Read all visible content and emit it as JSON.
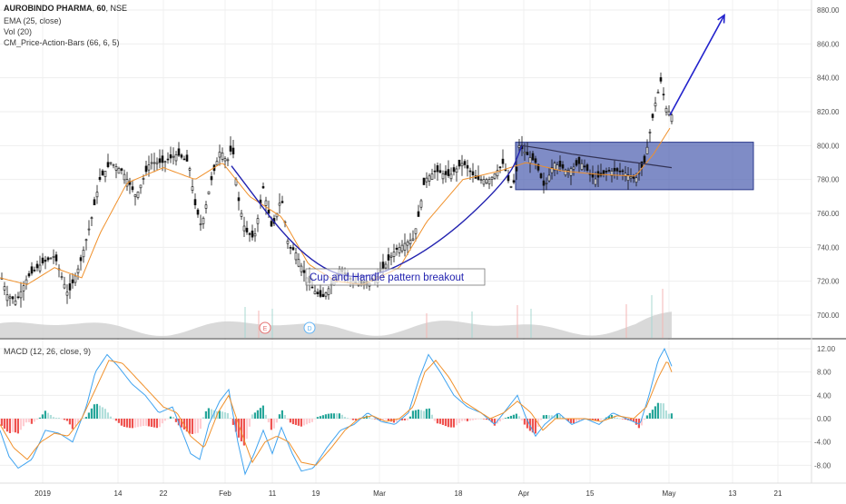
{
  "legend": {
    "symbol": "AUROBINDO PHARMA",
    "interval": "60",
    "exchange": "NSE",
    "indicators": [
      "EMA (25, close)",
      "Vol (20)",
      "CM_Price-Action-Bars (66, 6, 5)"
    ]
  },
  "macd_label": "MACD (12, 26, close, 9)",
  "annotation": "Cup and Handle pattern breakout",
  "events": [
    {
      "label": "E"
    },
    {
      "label": "D"
    }
  ],
  "colors": {
    "candle": "#111111",
    "ema": "#f0902a",
    "cup_curve": "#2323b0",
    "rect_fill": "#5466b3",
    "arrow": "#2323cc",
    "macd_line": "#3fa3f0",
    "signal_line": "#f0902a",
    "hist_up": "#26a69a",
    "hist_down": "#ef5350",
    "volume": "#d0d0d0",
    "event_E": "#e57373",
    "event_D": "#64b5f6"
  },
  "chart_data": [
    {
      "type": "candlestick",
      "title": "AUROBINDO PHARMA, 60, NSE",
      "ylim": [
        690,
        885
      ],
      "y_ticks": [
        "880.00",
        "860.00",
        "840.00",
        "820.00",
        "800.00",
        "780.00",
        "760.00",
        "740.00",
        "720.00",
        "700.00"
      ],
      "x_ticks": [
        "2019",
        "14",
        "22",
        "Feb",
        "11",
        "19",
        "Mar",
        "18",
        "Apr",
        "15",
        "May",
        "13",
        "21"
      ],
      "series": [
        {
          "name": "Price",
          "points": [
            [
              0,
              725
            ],
            [
              8,
              712
            ],
            [
              18,
              708
            ],
            [
              30,
              722
            ],
            [
              45,
              730
            ],
            [
              60,
              735
            ],
            [
              75,
              712
            ],
            [
              88,
              730
            ],
            [
              100,
              755
            ],
            [
              110,
              780
            ],
            [
              122,
              790
            ],
            [
              135,
              785
            ],
            [
              150,
              770
            ],
            [
              165,
              790
            ],
            [
              180,
              790
            ],
            [
              195,
              795
            ],
            [
              208,
              790
            ],
            [
              215,
              765
            ],
            [
              222,
              752
            ],
            [
              232,
              778
            ],
            [
              243,
              798
            ],
            [
              250,
              790
            ],
            [
              256,
              800
            ],
            [
              262,
              770
            ],
            [
              270,
              750
            ],
            [
              280,
              745
            ],
            [
              290,
              775
            ],
            [
              300,
              750
            ],
            [
              310,
              770
            ],
            [
              318,
              740
            ],
            [
              325,
              738
            ],
            [
              335,
              725
            ],
            [
              345,
              715
            ],
            [
              355,
              710
            ],
            [
              365,
              718
            ],
            [
              375,
              728
            ],
            [
              385,
              722
            ],
            [
              395,
              718
            ],
            [
              405,
              718
            ],
            [
              415,
              722
            ],
            [
              425,
              730
            ],
            [
              435,
              738
            ],
            [
              445,
              742
            ],
            [
              455,
              745
            ],
            [
              460,
              755
            ],
            [
              468,
              780
            ],
            [
              480,
              785
            ],
            [
              495,
              782
            ],
            [
              510,
              790
            ],
            [
              525,
              780
            ],
            [
              540,
              780
            ],
            [
              555,
              790
            ],
            [
              562,
              775
            ],
            [
              568,
              780
            ],
            [
              572,
              800
            ],
            [
              580,
              795
            ],
            [
              590,
              790
            ],
            [
              600,
              775
            ],
            [
              610,
              790
            ],
            [
              625,
              785
            ],
            [
              640,
              790
            ],
            [
              655,
              780
            ],
            [
              670,
              785
            ],
            [
              685,
              785
            ],
            [
              700,
              780
            ],
            [
              710,
              790
            ],
            [
              716,
              808
            ],
            [
              722,
              825
            ],
            [
              728,
              838
            ],
            [
              734,
              822
            ],
            [
              740,
              818
            ]
          ]
        },
        {
          "name": "EMA",
          "points": [
            [
              0,
              722
            ],
            [
              30,
              718
            ],
            [
              60,
              728
            ],
            [
              90,
              722
            ],
            [
              110,
              748
            ],
            [
              140,
              778
            ],
            [
              180,
              787
            ],
            [
              215,
              780
            ],
            [
              245,
              790
            ],
            [
              275,
              770
            ],
            [
              310,
              758
            ],
            [
              340,
              730
            ],
            [
              370,
              720
            ],
            [
              400,
              718
            ],
            [
              440,
              728
            ],
            [
              470,
              755
            ],
            [
              510,
              780
            ],
            [
              550,
              785
            ],
            [
              580,
              790
            ],
            [
              620,
              785
            ],
            [
              660,
              783
            ],
            [
              700,
              782
            ],
            [
              720,
              795
            ],
            [
              740,
              812
            ]
          ]
        }
      ],
      "cup_curve": [
        [
          255,
          788
        ],
        [
          330,
          735
        ],
        [
          395,
          718
        ],
        [
          480,
          740
        ],
        [
          560,
          780
        ],
        [
          575,
          800
        ]
      ],
      "handle_line": [
        [
          575,
          800
        ],
        [
          600,
          798
        ],
        [
          630,
          795
        ],
        [
          670,
          792
        ],
        [
          700,
          790
        ],
        [
          740,
          787
        ]
      ],
      "breakout_zone": {
        "x": [
          568,
          830
        ],
        "y": [
          774,
          802
        ]
      },
      "target_arrow": {
        "from": [
          738,
          818
        ],
        "to": [
          798,
          877
        ]
      }
    },
    {
      "type": "line",
      "title": "MACD (12, 26, close, 9)",
      "ylim": [
        -12,
        14
      ],
      "y_ticks": [
        "12.00",
        "8.00",
        "4.00",
        "0.00",
        "-4.00",
        "-8.00"
      ],
      "series": [
        {
          "name": "MACD",
          "points": [
            [
              0,
              -2
            ],
            [
              10,
              -6.5
            ],
            [
              20,
              -8.5
            ],
            [
              35,
              -7
            ],
            [
              50,
              -2
            ],
            [
              65,
              -2.5
            ],
            [
              80,
              -4
            ],
            [
              95,
              2
            ],
            [
              105,
              8
            ],
            [
              118,
              11
            ],
            [
              130,
              9
            ],
            [
              145,
              6
            ],
            [
              160,
              4
            ],
            [
              175,
              1
            ],
            [
              190,
              2
            ],
            [
              200,
              -2
            ],
            [
              210,
              -6
            ],
            [
              220,
              -7
            ],
            [
              230,
              -1
            ],
            [
              242,
              3
            ],
            [
              252,
              5
            ],
            [
              262,
              -4
            ],
            [
              270,
              -9.5
            ],
            [
              280,
              -6
            ],
            [
              290,
              -2
            ],
            [
              300,
              -6
            ],
            [
              310,
              -1.5
            ],
            [
              322,
              -6
            ],
            [
              332,
              -9
            ],
            [
              345,
              -8.5
            ],
            [
              360,
              -5
            ],
            [
              375,
              -2
            ],
            [
              390,
              -1
            ],
            [
              405,
              1
            ],
            [
              420,
              -0.5
            ],
            [
              435,
              -1
            ],
            [
              450,
              1
            ],
            [
              462,
              7
            ],
            [
              472,
              11
            ],
            [
              485,
              8
            ],
            [
              500,
              4
            ],
            [
              515,
              2
            ],
            [
              530,
              1
            ],
            [
              545,
              -1
            ],
            [
              560,
              2
            ],
            [
              570,
              4
            ],
            [
              580,
              0
            ],
            [
              590,
              -3
            ],
            [
              600,
              -1
            ],
            [
              615,
              1
            ],
            [
              630,
              -1
            ],
            [
              645,
              0
            ],
            [
              660,
              -1
            ],
            [
              675,
              1
            ],
            [
              690,
              0
            ],
            [
              705,
              -1
            ],
            [
              715,
              4
            ],
            [
              725,
              10
            ],
            [
              732,
              12
            ],
            [
              740,
              9
            ]
          ]
        },
        {
          "name": "Signal",
          "points": [
            [
              0,
              -1
            ],
            [
              15,
              -5
            ],
            [
              30,
              -7
            ],
            [
              45,
              -4
            ],
            [
              60,
              -2.5
            ],
            [
              75,
              -3
            ],
            [
              90,
              0
            ],
            [
              105,
              5
            ],
            [
              120,
              10
            ],
            [
              135,
              9.5
            ],
            [
              150,
              7
            ],
            [
              165,
              4.5
            ],
            [
              180,
              2
            ],
            [
              195,
              1
            ],
            [
              210,
              -3
            ],
            [
              225,
              -5
            ],
            [
              240,
              1
            ],
            [
              252,
              4
            ],
            [
              265,
              -2
            ],
            [
              278,
              -7.5
            ],
            [
              292,
              -4
            ],
            [
              305,
              -3
            ],
            [
              318,
              -4
            ],
            [
              332,
              -7.5
            ],
            [
              348,
              -8
            ],
            [
              365,
              -5
            ],
            [
              380,
              -2
            ],
            [
              395,
              0
            ],
            [
              410,
              0.5
            ],
            [
              425,
              -0.5
            ],
            [
              440,
              0
            ],
            [
              455,
              2
            ],
            [
              468,
              8
            ],
            [
              480,
              10
            ],
            [
              495,
              7
            ],
            [
              510,
              3
            ],
            [
              525,
              1.5
            ],
            [
              540,
              0
            ],
            [
              555,
              1
            ],
            [
              570,
              3
            ],
            [
              585,
              1
            ],
            [
              598,
              -2
            ],
            [
              612,
              0
            ],
            [
              628,
              0
            ],
            [
              645,
              0
            ],
            [
              662,
              -0.5
            ],
            [
              680,
              0.5
            ],
            [
              698,
              0
            ],
            [
              712,
              2
            ],
            [
              725,
              7
            ],
            [
              735,
              10
            ],
            [
              740,
              8
            ]
          ]
        }
      ]
    }
  ]
}
